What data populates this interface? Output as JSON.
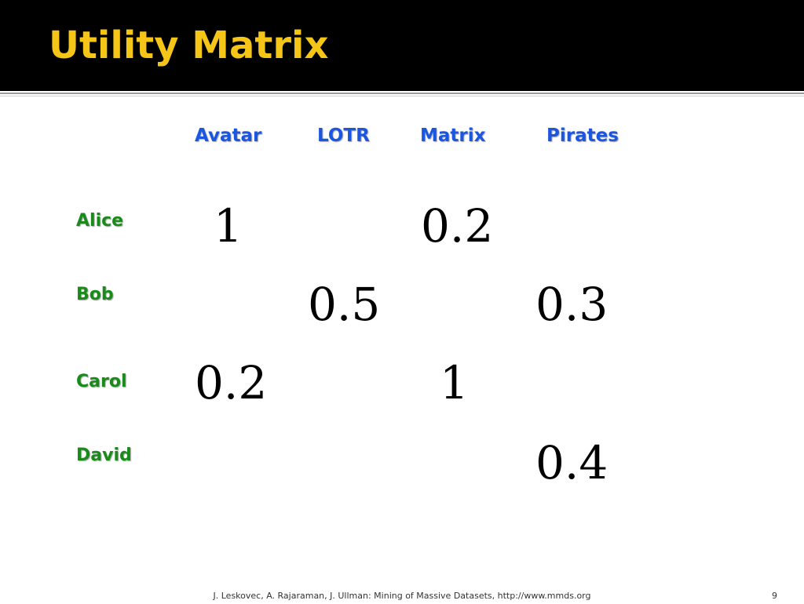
{
  "slide": {
    "title": "Utility Matrix",
    "title_color": "#f5c518",
    "header_bg": "#000000"
  },
  "matrix": {
    "columns": [
      "Avatar",
      "LOTR",
      "Matrix",
      "Pirates"
    ],
    "rows": [
      {
        "name": "Alice",
        "cells": [
          "1",
          "",
          "0.2",
          ""
        ]
      },
      {
        "name": "Bob",
        "cells": [
          "",
          "0.5",
          "",
          "0.3"
        ]
      },
      {
        "name": "Carol",
        "cells": [
          "0.2",
          "",
          "1",
          ""
        ]
      },
      {
        "name": "David",
        "cells": [
          "",
          "",
          "",
          "0.4"
        ]
      }
    ],
    "column_color": "#1a56e0",
    "row_color": "#1a8a1a"
  },
  "footer": {
    "citation": "J. Leskovec, A. Rajaraman, J. Ullman: Mining of Massive Datasets, http://www.mmds.org",
    "page_number": "9"
  }
}
